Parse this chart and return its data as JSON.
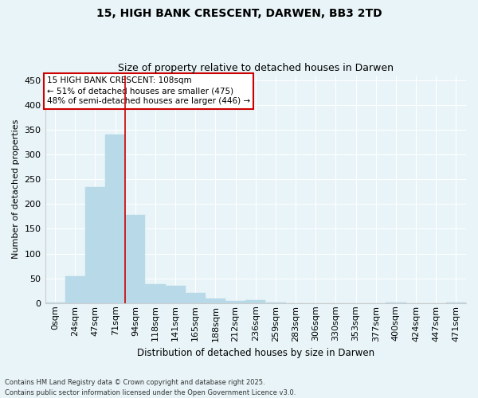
{
  "title1": "15, HIGH BANK CRESCENT, DARWEN, BB3 2TD",
  "title2": "Size of property relative to detached houses in Darwen",
  "xlabel": "Distribution of detached houses by size in Darwen",
  "ylabel": "Number of detached properties",
  "annotation_title": "15 HIGH BANK CRESCENT: 108sqm",
  "annotation_line1": "← 51% of detached houses are smaller (475)",
  "annotation_line2": "48% of semi-detached houses are larger (446) →",
  "footnote1": "Contains HM Land Registry data © Crown copyright and database right 2025.",
  "footnote2": "Contains public sector information licensed under the Open Government Licence v3.0.",
  "bar_color": "#b8d9e8",
  "highlight_color": "#cc0000",
  "background_color": "#e8f4f8",
  "grid_color": "#ffffff",
  "categories": [
    "0sqm",
    "24sqm",
    "47sqm",
    "71sqm",
    "94sqm",
    "118sqm",
    "141sqm",
    "165sqm",
    "188sqm",
    "212sqm",
    "236sqm",
    "259sqm",
    "283sqm",
    "306sqm",
    "330sqm",
    "353sqm",
    "377sqm",
    "400sqm",
    "424sqm",
    "447sqm",
    "471sqm"
  ],
  "values": [
    2,
    55,
    235,
    340,
    178,
    38,
    35,
    20,
    10,
    5,
    6,
    2,
    0,
    0,
    0,
    0,
    0,
    2,
    0,
    0,
    2
  ],
  "red_line_x": 3.5,
  "ylim": [
    0,
    460
  ],
  "yticks": [
    0,
    50,
    100,
    150,
    200,
    250,
    300,
    350,
    400,
    450
  ]
}
